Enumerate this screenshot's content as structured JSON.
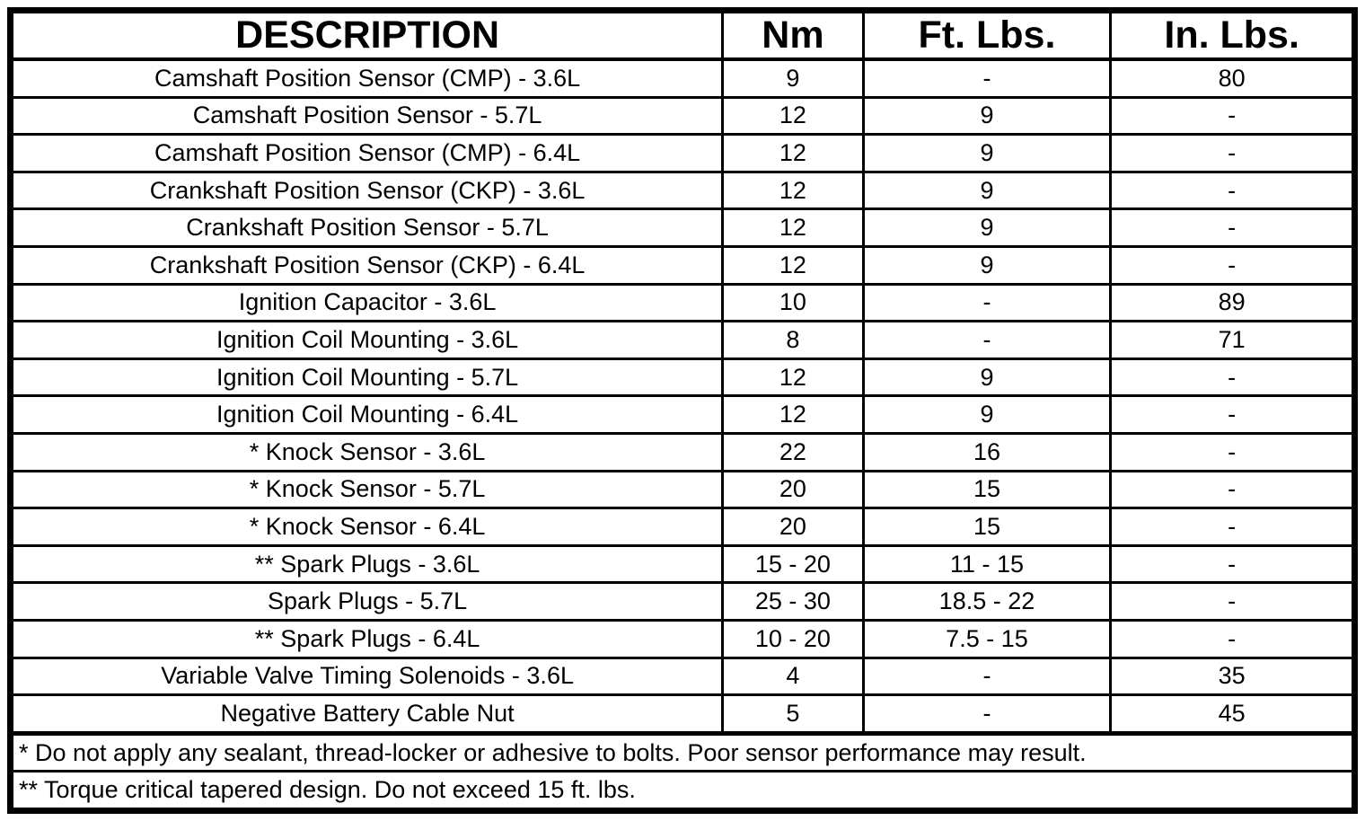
{
  "colors": {
    "background": "#ffffff",
    "border": "#000000",
    "text": "#000000"
  },
  "table": {
    "columns": [
      "DESCRIPTION",
      "Nm",
      "Ft. Lbs.",
      "In. Lbs."
    ],
    "rows": [
      {
        "description": "Camshaft Position Sensor (CMP) - 3.6L",
        "nm": "9",
        "ft_lbs": "-",
        "in_lbs": "80"
      },
      {
        "description": "Camshaft Position Sensor - 5.7L",
        "nm": "12",
        "ft_lbs": "9",
        "in_lbs": "-"
      },
      {
        "description": "Camshaft Position Sensor (CMP) - 6.4L",
        "nm": "12",
        "ft_lbs": "9",
        "in_lbs": "-"
      },
      {
        "description": "Crankshaft Position Sensor (CKP) - 3.6L",
        "nm": "12",
        "ft_lbs": "9",
        "in_lbs": "-"
      },
      {
        "description": "Crankshaft Position Sensor - 5.7L",
        "nm": "12",
        "ft_lbs": "9",
        "in_lbs": "-"
      },
      {
        "description": "Crankshaft Position Sensor (CKP) - 6.4L",
        "nm": "12",
        "ft_lbs": "9",
        "in_lbs": "-"
      },
      {
        "description": "Ignition Capacitor - 3.6L",
        "nm": "10",
        "ft_lbs": "-",
        "in_lbs": "89"
      },
      {
        "description": "Ignition Coil Mounting - 3.6L",
        "nm": "8",
        "ft_lbs": "-",
        "in_lbs": "71"
      },
      {
        "description": "Ignition Coil Mounting - 5.7L",
        "nm": "12",
        "ft_lbs": "9",
        "in_lbs": "-"
      },
      {
        "description": "Ignition Coil Mounting - 6.4L",
        "nm": "12",
        "ft_lbs": "9",
        "in_lbs": "-"
      },
      {
        "description": "* Knock Sensor - 3.6L",
        "nm": "22",
        "ft_lbs": "16",
        "in_lbs": "-"
      },
      {
        "description": "* Knock Sensor - 5.7L",
        "nm": "20",
        "ft_lbs": "15",
        "in_lbs": "-"
      },
      {
        "description": "* Knock Sensor - 6.4L",
        "nm": "20",
        "ft_lbs": "15",
        "in_lbs": "-"
      },
      {
        "description": "** Spark Plugs - 3.6L",
        "nm": "15 - 20",
        "ft_lbs": "11 - 15",
        "in_lbs": "-"
      },
      {
        "description": "Spark Plugs - 5.7L",
        "nm": "25 - 30",
        "ft_lbs": "18.5 - 22",
        "in_lbs": "-"
      },
      {
        "description": "** Spark Plugs - 6.4L",
        "nm": "10 - 20",
        "ft_lbs": "7.5 - 15",
        "in_lbs": "-"
      },
      {
        "description": "Variable Valve Timing Solenoids - 3.6L",
        "nm": "4",
        "ft_lbs": "-",
        "in_lbs": "35"
      },
      {
        "description": "Negative Battery Cable Nut",
        "nm": "5",
        "ft_lbs": "-",
        "in_lbs": "45"
      }
    ],
    "footnotes": [
      "* Do not apply any sealant, thread-locker or adhesive to bolts. Poor sensor performance may result.",
      "** Torque critical tapered design. Do not exceed 15 ft. lbs."
    ]
  }
}
